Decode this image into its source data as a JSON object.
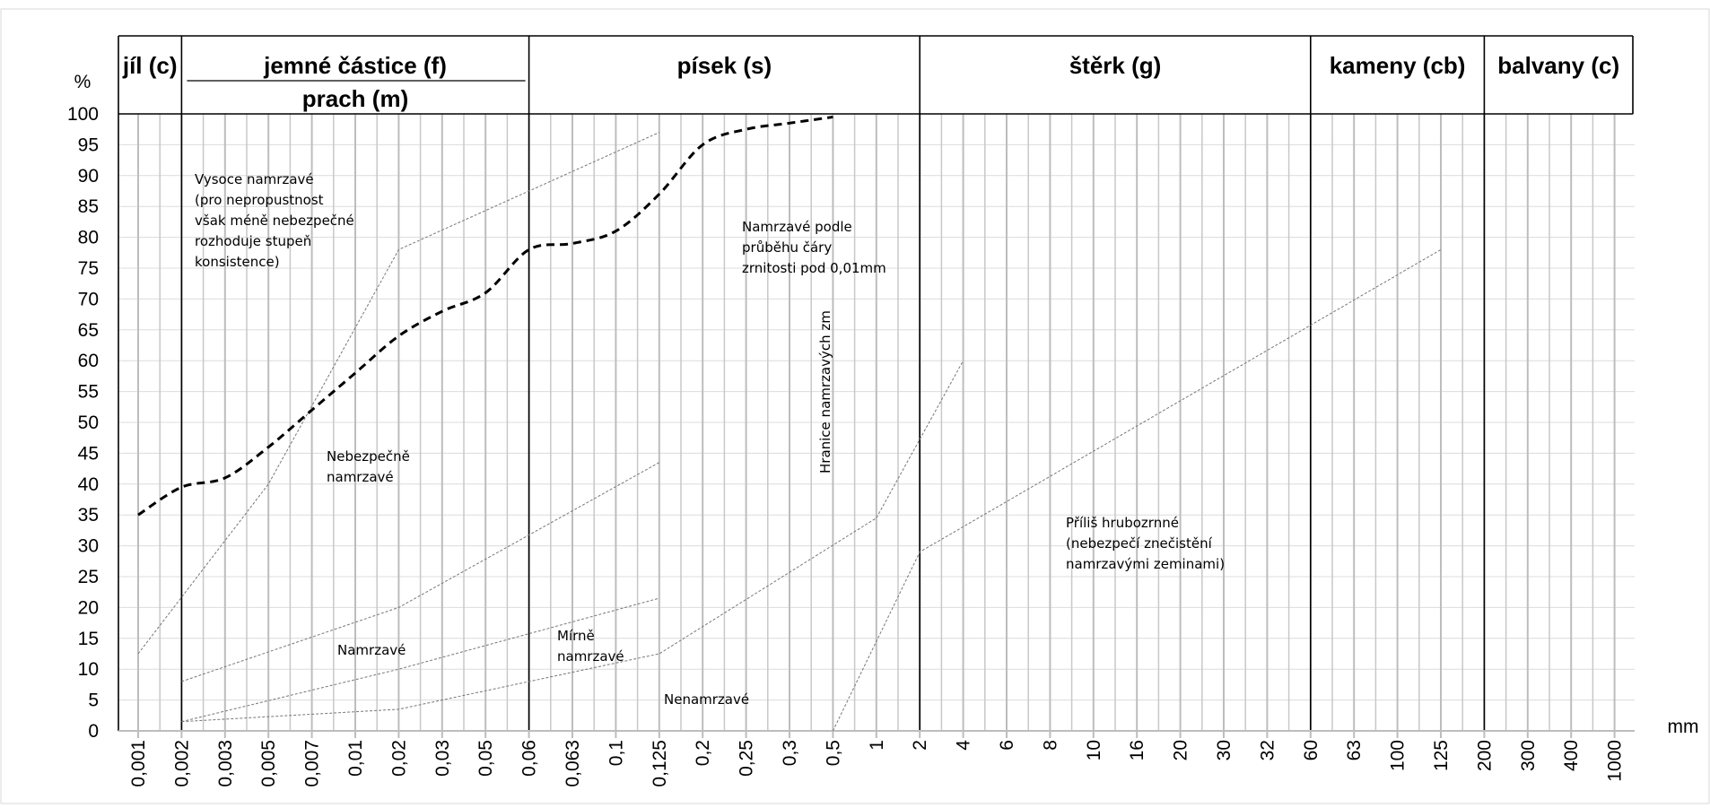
{
  "chart_data": {
    "type": "line",
    "y_unit": "%",
    "x_unit": "mm",
    "ylim": [
      0,
      100
    ],
    "y_ticks": [
      0,
      5,
      10,
      15,
      20,
      25,
      30,
      35,
      40,
      45,
      50,
      55,
      60,
      65,
      70,
      75,
      80,
      85,
      90,
      95,
      100
    ],
    "x_tick_labels": [
      "0,001",
      "0,002",
      "0,003",
      "0,005",
      "0,007",
      "0,01",
      "0,02",
      "0,03",
      "0,05",
      "0,06",
      "0,063",
      "0,1",
      "0,125",
      "0,2",
      "0,25",
      "0,3",
      "0,5",
      "1",
      "2",
      "4",
      "6",
      "8",
      "10",
      "16",
      "20",
      "30",
      "32",
      "60",
      "63",
      "100",
      "125",
      "200",
      "300",
      "400",
      "1000"
    ],
    "header": {
      "clay": "jíl (c)",
      "fines": "jemné částice (f)",
      "silt": "prach (m)",
      "sand": "písek (s)",
      "gravel": "štěrk (g)",
      "cobbles": "kameny (cb)",
      "boulders": "balvany (c)"
    },
    "grading_curve": {
      "style": "dashed",
      "color": "#000000",
      "points": [
        {
          "x": "0,001",
          "y": 35
        },
        {
          "x": "0,002",
          "y": 39.5
        },
        {
          "x": "0,003",
          "y": 41
        },
        {
          "x": "0,005",
          "y": 46
        },
        {
          "x": "0,007",
          "y": 52
        },
        {
          "x": "0,01",
          "y": 58
        },
        {
          "x": "0,02",
          "y": 64
        },
        {
          "x": "0,03",
          "y": 68
        },
        {
          "x": "0,05",
          "y": 71
        },
        {
          "x": "0,06",
          "y": 78
        },
        {
          "x": "0,063",
          "y": 79
        },
        {
          "x": "0,1",
          "y": 81
        },
        {
          "x": "0,125",
          "y": 87
        },
        {
          "x": "0,2",
          "y": 95
        },
        {
          "x": "0,25",
          "y": 97.5
        },
        {
          "x": "0,3",
          "y": 98.5
        },
        {
          "x": "0,5",
          "y": 99.5
        }
      ]
    },
    "boundary_lines": [
      {
        "color": "#777777",
        "points": [
          {
            "x": "0,001",
            "y": 12.5
          },
          {
            "x": "0,005",
            "y": 40
          },
          {
            "x": "0,02",
            "y": 78
          },
          {
            "x": "0,125",
            "y": 97
          }
        ]
      },
      {
        "color": "#777777",
        "points": [
          {
            "x": "0,002",
            "y": 8
          },
          {
            "x": "0,02",
            "y": 20
          },
          {
            "x": "0,125",
            "y": 43.5
          }
        ]
      },
      {
        "color": "#777777",
        "points": [
          {
            "x": "0,002",
            "y": 1.5
          },
          {
            "x": "0,02",
            "y": 10
          },
          {
            "x": "0,125",
            "y": 21.5
          }
        ]
      },
      {
        "color": "#777777",
        "points": [
          {
            "x": "0,002",
            "y": 1.5
          },
          {
            "x": "0,02",
            "y": 3.5
          },
          {
            "x": "0,125",
            "y": 12.5
          },
          {
            "x": "1",
            "y": 34.5
          },
          {
            "x": "4",
            "y": 60
          }
        ]
      },
      {
        "color": "#777777",
        "points": [
          {
            "x": "0,5",
            "y": 0
          },
          {
            "x": "2",
            "y": 29
          },
          {
            "x": "125",
            "y": 78
          }
        ]
      }
    ],
    "annotations": [
      {
        "lines": [
          "Vysoce namrzavé",
          "(pro nepropustnost",
          "však méně nebezpečné",
          "rozhoduje stupeň",
          "konsistence)"
        ]
      },
      {
        "lines": [
          "Nebezpečně",
          "namrzavé"
        ]
      },
      {
        "lines": [
          "Namrzavé"
        ]
      },
      {
        "lines": [
          "Mírně",
          "namrzavé"
        ]
      },
      {
        "lines": [
          "Nenamrzavé"
        ]
      },
      {
        "lines": [
          "Namrzavé podle",
          "průběhu čáry",
          "zrnitosti pod 0,01mm"
        ]
      },
      {
        "lines": [
          "Hranice namrzavých zm"
        ]
      },
      {
        "lines": [
          "Příliš hrubozrnné",
          "(nebezpečí znečistění",
          "namrzavými zeminami)"
        ]
      }
    ]
  }
}
